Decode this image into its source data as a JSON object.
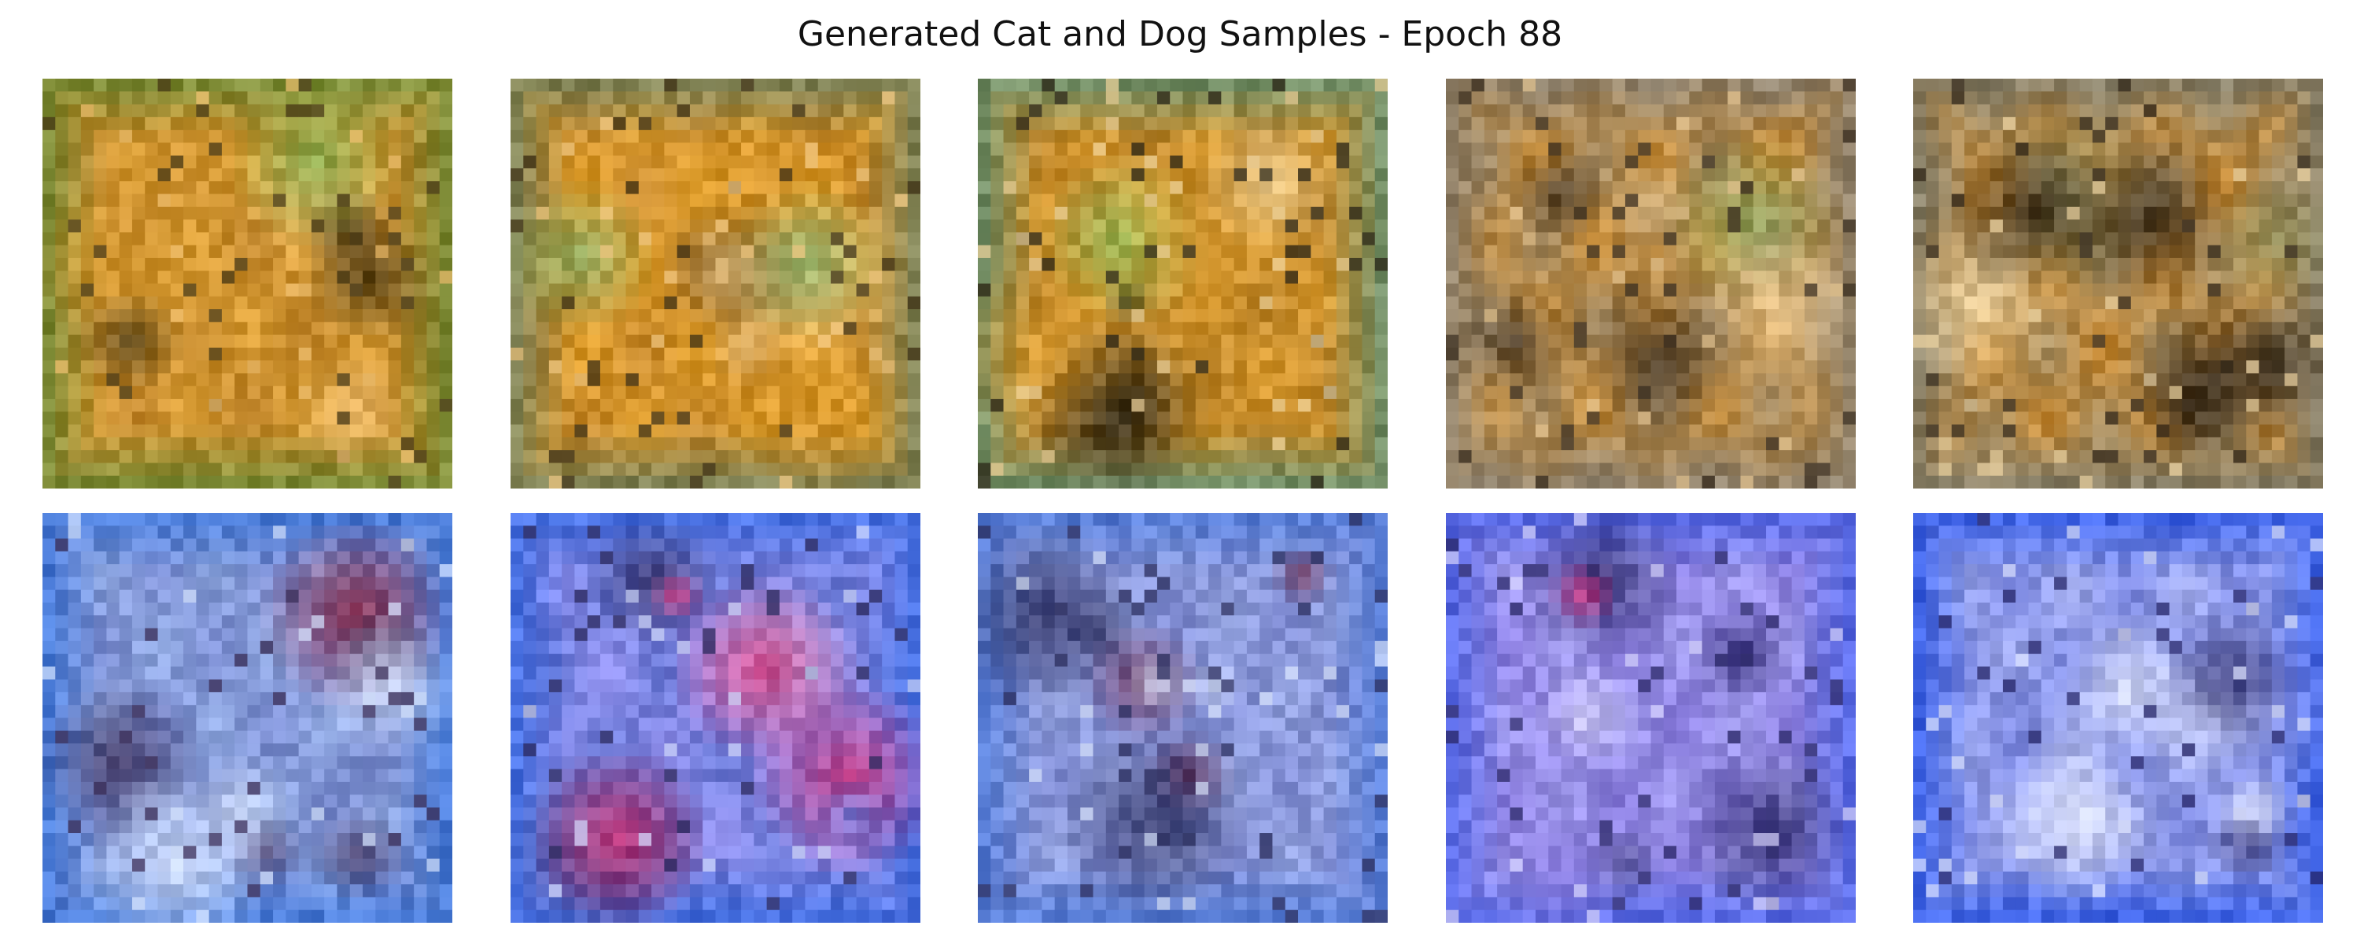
{
  "figure": {
    "title": "Generated Cat and Dog Samples - Epoch 88"
  },
  "samples": [
    {
      "row": "cat",
      "index": 1,
      "palette": {
        "base": "#c4892e",
        "dark": "#4a3b18",
        "mid": "#d69a32",
        "light": "#f0c070",
        "edge": "#6b8a38",
        "accent": "#7aa84a"
      }
    },
    {
      "row": "cat",
      "index": 2,
      "palette": {
        "base": "#c88a2c",
        "dark": "#3f3116",
        "mid": "#dc9b2a",
        "light": "#f3c983",
        "edge": "#6d7f5f",
        "accent": "#8ab36a"
      }
    },
    {
      "row": "cat",
      "index": 3,
      "palette": {
        "base": "#bd862c",
        "dark": "#2b2618",
        "mid": "#d6982e",
        "light": "#efd39b",
        "edge": "#5f8f74",
        "accent": "#92c15f"
      }
    },
    {
      "row": "cat",
      "index": 4,
      "palette": {
        "base": "#a2875d",
        "dark": "#3a2e20",
        "mid": "#c68d3a",
        "light": "#e7c793",
        "edge": "#8a8070",
        "accent": "#8da45d"
      }
    },
    {
      "row": "cat",
      "index": 5,
      "palette": {
        "base": "#a58a5b",
        "dark": "#352a1c",
        "mid": "#c68a35",
        "light": "#f0d7a5",
        "edge": "#7d7b6b",
        "accent": "#8c8e5c"
      }
    },
    {
      "row": "dog",
      "index": 1,
      "palette": {
        "base": "#8ea6df",
        "dark": "#3b2e58",
        "mid": "#7a8cd0",
        "light": "#d6e4ff",
        "edge": "#3c74d7",
        "accent": "#8a1e3a"
      }
    },
    {
      "row": "dog",
      "index": 2,
      "palette": {
        "base": "#8b8be8",
        "dark": "#2c2a5e",
        "mid": "#6c7bd8",
        "light": "#d3dcff",
        "edge": "#3d6de3",
        "accent": "#d3347b"
      }
    },
    {
      "row": "dog",
      "index": 3,
      "palette": {
        "base": "#93a2df",
        "dark": "#2c2f5f",
        "mid": "#7f8bd2",
        "light": "#dbe6ff",
        "edge": "#4d78d6",
        "accent": "#6b2c4d"
      }
    },
    {
      "row": "dog",
      "index": 4,
      "palette": {
        "base": "#9e98ea",
        "dark": "#2d2a6a",
        "mid": "#8c7fe0",
        "light": "#d9d6ff",
        "edge": "#4c63e6",
        "accent": "#d1367f"
      }
    },
    {
      "row": "dog",
      "index": 5,
      "palette": {
        "base": "#9ea8ea",
        "dark": "#27276a",
        "mid": "#7f8be3",
        "light": "#dde3ff",
        "edge": "#2e58e6",
        "accent": "#9c2a52"
      }
    }
  ]
}
